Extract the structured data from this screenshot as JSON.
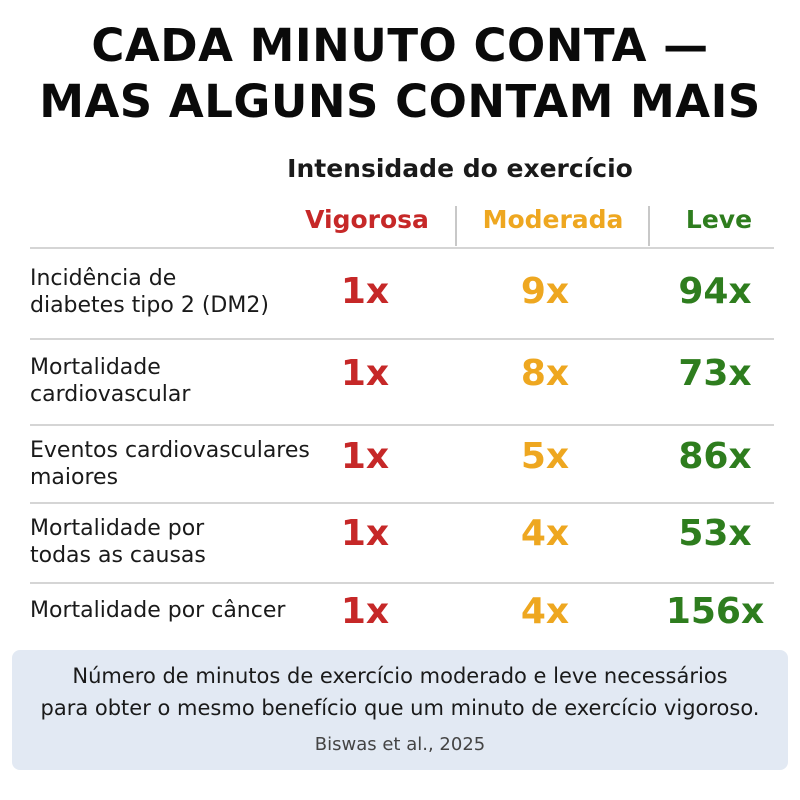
{
  "title": {
    "line1": "CADA MINUTO CONTA —",
    "line2": "MAS ALGUNS CONTAM MAIS"
  },
  "table": {
    "group_header": "Intensidade do exercício",
    "columns": [
      "Vigorosa",
      "Moderada",
      "Leve"
    ],
    "column_colors": [
      "#c62828",
      "#eea720",
      "#2e7d1e"
    ],
    "rows": [
      {
        "label_lines": [
          "Incidência de",
          "diabetes tipo 2 (DM2)"
        ],
        "values": [
          "1x",
          "9x",
          "94x"
        ]
      },
      {
        "label_lines": [
          "Mortalidade",
          "cardiovascular"
        ],
        "values": [
          "1x",
          "8x",
          "73x"
        ]
      },
      {
        "label_lines": [
          "Eventos cardiovasculares",
          "maiores"
        ],
        "values": [
          "1x",
          "5x",
          "86x"
        ]
      },
      {
        "label_lines": [
          "Mortalidade por",
          "todas as causas"
        ],
        "values": [
          "1x",
          "4x",
          "53x"
        ]
      },
      {
        "label_lines": [
          "Mortalidade por câncer"
        ],
        "values": [
          "1x",
          "4x",
          "156x"
        ]
      }
    ]
  },
  "footer": {
    "note_line1": "Número de minutos de exercício moderado e leve necessários",
    "note_line2": "para obter o mesmo benefício que um minuto de exercício vigoroso.",
    "source": "Biswas et al., 2025"
  }
}
